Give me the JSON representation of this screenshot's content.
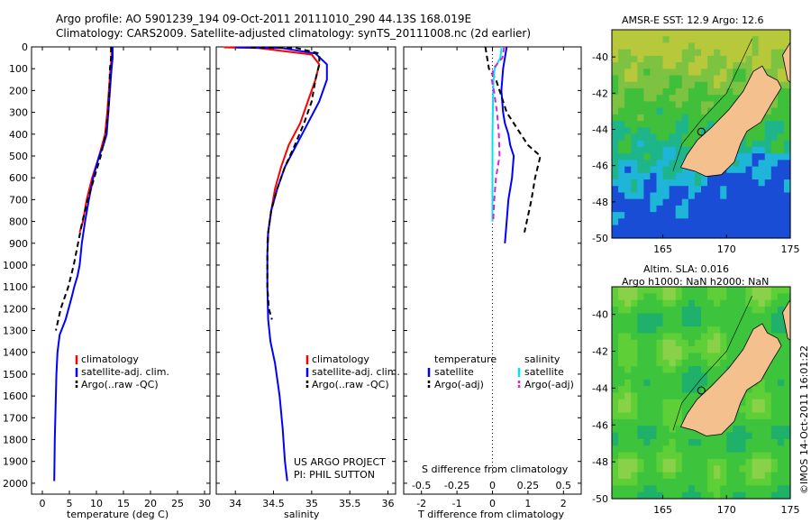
{
  "header": {
    "line1": "Argo profile: AO 5901239_194 09-Oct-2011 20111010_290 44.13S 168.019E",
    "line2": "Climatology: CARS2009. Satellite-adjusted climatology: synTS_20111008.nc (2d earlier)"
  },
  "depth_axis": {
    "ticks": [
      0,
      100,
      200,
      300,
      400,
      500,
      600,
      700,
      800,
      900,
      1000,
      1100,
      1200,
      1300,
      1400,
      1500,
      1600,
      1700,
      1800,
      1900,
      2000
    ]
  },
  "colors": {
    "climatology": "#ff0000",
    "satellite": "#0000ff",
    "argo": "#000000",
    "sat_salinity": "#00e5ee",
    "argo_salinity": "#dd22dd",
    "land": "#f4c08e"
  },
  "legend_main": {
    "climatology": "climatology",
    "satellite": "satellite-adj. clim.",
    "argo": "Argo(..raw -QC)"
  },
  "legend_diff": {
    "temperature": "temperature",
    "salinity": "salinity",
    "satellite": "satellite",
    "argo": "Argo(-adj)"
  },
  "project": {
    "line1": "US ARGO PROJECT",
    "line2": "PI: PHIL SUTTON"
  },
  "maps": {
    "sst_title": "AMSR-E SST: 12.9 Argo: 12.6",
    "sla_title1": "Altim. SLA: 0.016",
    "sla_title2": "Argo h1000: NaN h2000: NaN",
    "lat_ticks": [
      "-40",
      "-42",
      "-44",
      "-46",
      "-48",
      "-50"
    ],
    "lon_ticks": [
      "165",
      "170",
      "175"
    ],
    "credit": "©IMOS 14-Oct-2011 16:01:22"
  },
  "chart_data": [
    {
      "type": "line",
      "xlabel": "temperature (deg C)",
      "xlim": [
        -2,
        31
      ],
      "xticks": [
        0,
        5,
        10,
        15,
        20,
        25,
        30
      ],
      "ylim": [
        2050,
        0
      ],
      "series": [
        {
          "name": "climatology",
          "x": [
            12.8,
            12.8,
            12.6,
            12.3,
            12.0,
            11.6,
            10.5,
            9.2,
            8.2,
            7.5,
            6.9
          ],
          "y": [
            0,
            50,
            100,
            200,
            300,
            400,
            500,
            600,
            700,
            800,
            850
          ]
        },
        {
          "name": "satellite-adj. clim.",
          "x": [
            13.0,
            13.0,
            12.8,
            12.5,
            12.2,
            11.9,
            11.3,
            10.5,
            9.4,
            8.6,
            7.9,
            7.3,
            6.9,
            6.5,
            5.9,
            5.4,
            4.3,
            3.2,
            2.8,
            2.6,
            2.5,
            2.4,
            2.3,
            2.2
          ],
          "y": [
            0,
            50,
            100,
            200,
            300,
            400,
            450,
            500,
            600,
            700,
            800,
            900,
            1000,
            1050,
            1100,
            1150,
            1250,
            1320,
            1400,
            1500,
            1600,
            1700,
            1800,
            1990
          ]
        },
        {
          "name": "Argo(..raw -QC)",
          "x": [
            12.7,
            12.7,
            12.5,
            12.4,
            12.2,
            11.7,
            10.8,
            9.6,
            8.4,
            7.4,
            6.6,
            5.8,
            4.8,
            3.4,
            2.5
          ],
          "y": [
            0,
            50,
            100,
            200,
            300,
            400,
            500,
            600,
            700,
            800,
            900,
            1000,
            1100,
            1200,
            1300
          ]
        }
      ]
    },
    {
      "type": "line",
      "xlabel": "salinity",
      "xlim": [
        33.75,
        36.1
      ],
      "xticks": [
        34,
        34.5,
        35,
        35.5,
        36
      ],
      "ylim": [
        2050,
        0
      ],
      "series": [
        {
          "name": "climatology",
          "x": [
            33.85,
            34.3,
            35.0,
            35.1,
            35.05,
            34.95,
            34.85,
            34.7,
            34.6,
            34.52,
            34.47,
            34.43,
            34.42
          ],
          "y": [
            2,
            5,
            35,
            80,
            150,
            250,
            350,
            450,
            550,
            650,
            750,
            850,
            900
          ]
        },
        {
          "name": "satellite-adj. clim.",
          "x": [
            34.0,
            34.6,
            35.05,
            35.2,
            35.2,
            35.1,
            34.95,
            34.8,
            34.65,
            34.55,
            34.47,
            34.43,
            34.42,
            34.42,
            34.43,
            34.46,
            34.52,
            34.58,
            34.62,
            34.65,
            34.68
          ],
          "y": [
            2,
            5,
            30,
            80,
            150,
            250,
            350,
            450,
            550,
            650,
            750,
            850,
            950,
            1100,
            1250,
            1350,
            1450,
            1600,
            1750,
            1900,
            1990
          ]
        },
        {
          "name": "Argo(..raw -QC)",
          "x": [
            34.2,
            34.8,
            35.1,
            35.1,
            35.05,
            35.0,
            34.9,
            34.78,
            34.65,
            34.55,
            34.47,
            34.43,
            34.42,
            34.42,
            34.44,
            34.48
          ],
          "y": [
            2,
            5,
            30,
            80,
            150,
            250,
            350,
            450,
            550,
            650,
            750,
            850,
            950,
            1100,
            1200,
            1250
          ]
        }
      ]
    },
    {
      "type": "line",
      "xlabel": "T difference from climatology",
      "x2label": "S difference from climatology",
      "xlim": [
        -2.5,
        2.5
      ],
      "xticks": [
        -2,
        -1,
        0,
        1,
        2
      ],
      "x2ticks": [
        -0.5,
        -0.25,
        0,
        0.25,
        0.5
      ],
      "ylim": [
        2050,
        0
      ],
      "series": [
        {
          "name": "temperature satellite",
          "x": [
            0.4,
            0.3,
            0.25,
            0.3,
            0.35,
            0.45,
            0.5,
            0.6,
            0.55,
            0.45,
            0.4,
            0.35
          ],
          "y": [
            0,
            100,
            200,
            300,
            350,
            400,
            450,
            500,
            600,
            700,
            800,
            900
          ]
        },
        {
          "name": "temperature Argo(-adj)",
          "x": [
            -0.2,
            -0.1,
            0.1,
            0.2,
            0.4,
            0.8,
            1.0,
            1.35,
            1.2,
            1.1,
            0.9
          ],
          "y": [
            0,
            100,
            150,
            200,
            300,
            400,
            450,
            500,
            600,
            700,
            850
          ]
        },
        {
          "name": "salinity satellite",
          "x": [
            0.26,
            0.22,
            0.06,
            0.03,
            0.02,
            0.01,
            0.0,
            0.0,
            0.0,
            0.0,
            0.0
          ],
          "y": [
            0,
            50,
            100,
            150,
            200,
            300,
            400,
            500,
            600,
            700,
            800
          ]
        },
        {
          "name": "salinity Argo(-adj)",
          "x": [
            0.33,
            0.28,
            0.02,
            -0.02,
            0.04,
            0.13,
            0.18,
            0.2,
            0.1,
            0.05,
            0.02
          ],
          "y": [
            0,
            50,
            100,
            150,
            200,
            300,
            400,
            500,
            600,
            700,
            800
          ]
        }
      ]
    },
    {
      "type": "heatmap",
      "title": "AMSR-E SST: 12.9 Argo: 12.6",
      "xlim": [
        161,
        175
      ],
      "ylim": [
        -50,
        -38.5
      ],
      "xticks": [
        165,
        170,
        175
      ],
      "yticks": [
        -40,
        -42,
        -44,
        -46,
        -48,
        -50
      ]
    },
    {
      "type": "heatmap",
      "title": "Altim. SLA: 0.016",
      "xlim": [
        161,
        175
      ],
      "ylim": [
        -50,
        -38.5
      ],
      "xticks": [
        165,
        170,
        175
      ],
      "yticks": [
        -40,
        -42,
        -44,
        -46,
        -48,
        -50
      ]
    }
  ]
}
